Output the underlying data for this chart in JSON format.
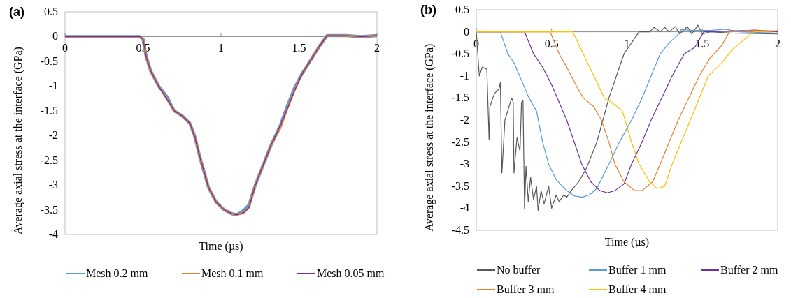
{
  "chart_data": [
    {
      "type": "line",
      "title": "(a)",
      "xlabel": "Time (µs)",
      "ylabel": "Average axial stress at the interface (GPa)",
      "xlim": [
        0,
        2
      ],
      "xticks": [
        0,
        0.5,
        1,
        1.5,
        2
      ],
      "ylim": [
        -4,
        0.5
      ],
      "yticks": [
        0.5,
        0,
        -0.5,
        -1,
        -1.5,
        -2,
        -2.5,
        -3,
        -3.5,
        -4
      ],
      "grid": false,
      "legend": "bottom",
      "marker": "none",
      "line_style": "solid",
      "series": [
        {
          "name": "Mesh 0.2 mm",
          "color": "#5b9bd5",
          "x": [
            0,
            0.48,
            0.5,
            0.52,
            0.55,
            0.6,
            0.65,
            0.7,
            0.75,
            0.8,
            0.83,
            0.87,
            0.92,
            0.97,
            1.02,
            1.07,
            1.1,
            1.13,
            1.15,
            1.18,
            1.22,
            1.27,
            1.32,
            1.38,
            1.42,
            1.47,
            1.52,
            1.58,
            1.63,
            1.68,
            1.7,
            1.8,
            1.9,
            2
          ],
          "values": [
            0,
            0,
            -0.05,
            -0.4,
            -0.7,
            -1,
            -1.2,
            -1.5,
            -1.6,
            -1.75,
            -2,
            -2.5,
            -3.05,
            -3.35,
            -3.5,
            -3.58,
            -3.6,
            -3.55,
            -3.5,
            -3.4,
            -3,
            -2.6,
            -2.2,
            -1.8,
            -1.45,
            -1.05,
            -0.75,
            -0.45,
            -0.2,
            0.02,
            0.02,
            0.02,
            0,
            0.02
          ]
        },
        {
          "name": "Mesh 0.1 mm",
          "color": "#ed7d31",
          "x": [
            0,
            0.48,
            0.5,
            0.52,
            0.55,
            0.6,
            0.65,
            0.7,
            0.75,
            0.8,
            0.83,
            0.87,
            0.92,
            0.97,
            1.02,
            1.07,
            1.1,
            1.13,
            1.15,
            1.18,
            1.22,
            1.27,
            1.32,
            1.38,
            1.42,
            1.47,
            1.52,
            1.58,
            1.63,
            1.68,
            1.7,
            1.8,
            1.9,
            2
          ],
          "values": [
            0,
            0,
            -0.05,
            -0.4,
            -0.7,
            -1,
            -1.25,
            -1.5,
            -1.6,
            -1.75,
            -2,
            -2.5,
            -3.05,
            -3.35,
            -3.5,
            -3.58,
            -3.6,
            -3.58,
            -3.55,
            -3.45,
            -3,
            -2.6,
            -2.2,
            -1.85,
            -1.5,
            -1.1,
            -0.75,
            -0.45,
            -0.2,
            0.02,
            0.02,
            0.02,
            0,
            0.02
          ]
        },
        {
          "name": "Mesh 0.05 mm",
          "color": "#7030a0",
          "x": [
            0,
            0.48,
            0.5,
            0.52,
            0.55,
            0.6,
            0.65,
            0.7,
            0.75,
            0.8,
            0.83,
            0.87,
            0.92,
            0.97,
            1.02,
            1.07,
            1.1,
            1.13,
            1.15,
            1.18,
            1.22,
            1.27,
            1.32,
            1.38,
            1.42,
            1.47,
            1.52,
            1.58,
            1.63,
            1.68,
            1.7,
            1.8,
            1.9,
            2
          ],
          "values": [
            0,
            0,
            -0.05,
            -0.4,
            -0.7,
            -1,
            -1.25,
            -1.5,
            -1.6,
            -1.75,
            -2,
            -2.5,
            -3.05,
            -3.35,
            -3.5,
            -3.58,
            -3.6,
            -3.58,
            -3.55,
            -3.45,
            -3,
            -2.6,
            -2.2,
            -1.8,
            -1.5,
            -1.1,
            -0.75,
            -0.45,
            -0.2,
            0.02,
            0.02,
            0.02,
            0,
            0.02
          ]
        }
      ]
    },
    {
      "type": "line",
      "title": "(b)",
      "xlabel": "Time (µs)",
      "ylabel": "Average axial stress at the interface (GPa)",
      "xlim": [
        0,
        2
      ],
      "xticks": [
        0,
        0.5,
        1,
        1.5,
        2
      ],
      "ylim": [
        -4.5,
        0.5
      ],
      "yticks": [
        0.5,
        0,
        -0.5,
        -1,
        -1.5,
        -2,
        -2.5,
        -3,
        -3.5,
        -4,
        -4.5
      ],
      "grid": false,
      "legend": "bottom",
      "marker": "none",
      "line_style": "solid",
      "series": [
        {
          "name": "No buffer",
          "color": "#595959",
          "x": [
            0,
            0.02,
            0.04,
            0.07,
            0.085,
            0.09,
            0.12,
            0.15,
            0.16,
            0.17,
            0.19,
            0.235,
            0.245,
            0.25,
            0.27,
            0.29,
            0.3,
            0.31,
            0.32,
            0.33,
            0.345,
            0.36,
            0.38,
            0.4,
            0.41,
            0.43,
            0.45,
            0.48,
            0.5,
            0.53,
            0.55,
            0.58,
            0.6,
            0.63,
            0.68,
            0.73,
            0.8,
            0.84,
            0.88,
            0.93,
            0.98,
            1.05,
            1.08,
            1.15,
            1.18,
            1.22,
            1.25,
            1.28,
            1.32,
            1.35,
            1.4,
            1.43,
            1.47,
            1.5,
            1.55,
            1.7,
            2
          ],
          "values": [
            0,
            -1,
            -0.8,
            -0.85,
            -2.45,
            -1.7,
            -1.4,
            -1.3,
            -1.15,
            -3.2,
            -2,
            -1.5,
            -1.6,
            -3.2,
            -2.4,
            -2.7,
            -1.6,
            -1.55,
            -4,
            -3.05,
            -3.85,
            -3.3,
            -3.8,
            -3.5,
            -4.05,
            -3.6,
            -3.9,
            -3.5,
            -4,
            -3.7,
            -3.85,
            -3.7,
            -3.75,
            -3.6,
            -3.4,
            -3.1,
            -2.5,
            -2,
            -1.5,
            -1,
            -0.5,
            -0.15,
            0,
            0,
            0.1,
            0,
            0.1,
            0,
            0.12,
            -0.05,
            0.12,
            -0.05,
            0.15,
            -0.05,
            0,
            -0.03,
            -0.05
          ]
        },
        {
          "name": "Buffer 1 mm",
          "color": "#5b9bd5",
          "x": [
            0,
            0.16,
            0.21,
            0.25,
            0.3,
            0.35,
            0.4,
            0.44,
            0.48,
            0.53,
            0.6,
            0.65,
            0.7,
            0.75,
            0.8,
            0.88,
            0.95,
            1.03,
            1.1,
            1.16,
            1.22,
            1.28,
            1.33,
            1.36,
            1.45,
            1.55,
            1.65,
            1.75,
            2
          ],
          "values": [
            0,
            0,
            -0.5,
            -0.7,
            -1.1,
            -1.5,
            -1.8,
            -2.5,
            -3,
            -3.35,
            -3.6,
            -3.72,
            -3.75,
            -3.7,
            -3.55,
            -3,
            -2.5,
            -2,
            -1.5,
            -1,
            -0.5,
            -0.25,
            -0.1,
            0.05,
            0.03,
            0.03,
            0.06,
            0,
            -0.03
          ]
        },
        {
          "name": "Buffer 2 mm",
          "color": "#7030a0",
          "x": [
            0,
            0.32,
            0.38,
            0.44,
            0.5,
            0.55,
            0.6,
            0.65,
            0.7,
            0.76,
            0.82,
            0.87,
            0.92,
            0.98,
            1.03,
            1.1,
            1.16,
            1.23,
            1.3,
            1.38,
            1.45,
            1.51,
            1.7,
            1.85,
            2
          ],
          "values": [
            0,
            0,
            -0.5,
            -0.8,
            -1.2,
            -1.6,
            -2,
            -2.5,
            -3,
            -3.4,
            -3.6,
            -3.65,
            -3.6,
            -3.45,
            -3,
            -2.5,
            -2,
            -1.5,
            -1,
            -0.5,
            -0.35,
            0,
            0.02,
            0.04,
            0
          ]
        },
        {
          "name": "Buffer 3 mm",
          "color": "#ed7d31",
          "x": [
            0,
            0.49,
            0.55,
            0.6,
            0.66,
            0.71,
            0.78,
            0.83,
            0.88,
            0.92,
            0.98,
            1.05,
            1.1,
            1.17,
            1.22,
            1.28,
            1.34,
            1.41,
            1.48,
            1.55,
            1.63,
            1.68,
            1.8,
            2
          ],
          "values": [
            0,
            0,
            -0.5,
            -0.8,
            -1.2,
            -1.5,
            -1.7,
            -2,
            -2.5,
            -3,
            -3.4,
            -3.6,
            -3.6,
            -3.4,
            -3,
            -2.5,
            -2,
            -1.5,
            -1,
            -0.6,
            -0.3,
            0,
            0.03,
            0.02
          ]
        },
        {
          "name": "Buffer 4 mm",
          "color": "#ffc000",
          "x": [
            0,
            0.64,
            0.71,
            0.78,
            0.85,
            0.9,
            0.97,
            1.03,
            1.08,
            1.15,
            1.2,
            1.25,
            1.3,
            1.36,
            1.42,
            1.48,
            1.54,
            1.63,
            1.7,
            1.84,
            2
          ],
          "values": [
            0,
            0,
            -0.5,
            -1,
            -1.5,
            -1.6,
            -1.8,
            -2.5,
            -3,
            -3.4,
            -3.55,
            -3.5,
            -3,
            -2.5,
            -2,
            -1.5,
            -1,
            -0.7,
            -0.4,
            0,
            0.02
          ]
        }
      ]
    }
  ]
}
